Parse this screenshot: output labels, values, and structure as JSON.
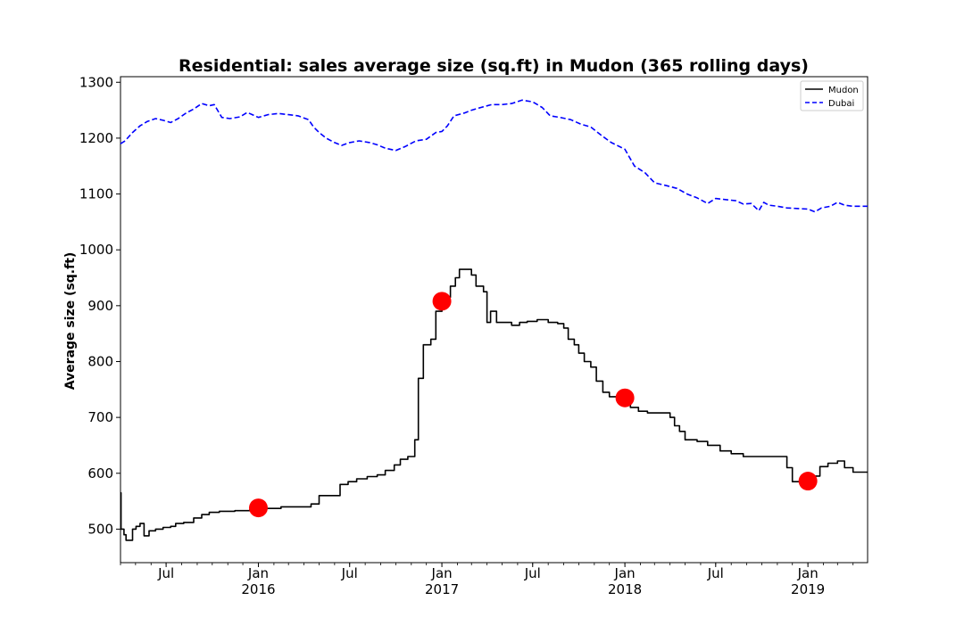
{
  "chart_data": {
    "type": "line",
    "title": "Residential: sales average size (sq.ft) in Mudon (365 rolling days)",
    "xlabel": "",
    "ylabel": "Average size (sq.ft)",
    "xlim": [
      "2015-04-01",
      "2019-04-30"
    ],
    "ylim": [
      440,
      1310
    ],
    "yticks": [
      500,
      600,
      700,
      800,
      900,
      1000,
      1100,
      1200,
      1300
    ],
    "xticks": [
      {
        "date": "2015-07-01",
        "label": "Jul",
        "sublabel": ""
      },
      {
        "date": "2016-01-01",
        "label": "Jan",
        "sublabel": "2016"
      },
      {
        "date": "2016-07-01",
        "label": "Jul",
        "sublabel": ""
      },
      {
        "date": "2017-01-01",
        "label": "Jan",
        "sublabel": "2017"
      },
      {
        "date": "2017-07-01",
        "label": "Jul",
        "sublabel": ""
      },
      {
        "date": "2018-01-01",
        "label": "Jan",
        "sublabel": "2018"
      },
      {
        "date": "2018-07-01",
        "label": "Jul",
        "sublabel": ""
      },
      {
        "date": "2019-01-01",
        "label": "Jan",
        "sublabel": "2019"
      }
    ],
    "grid": false,
    "legend_position": "top-right",
    "series": [
      {
        "name": "Mudon",
        "color": "#000000",
        "style": "solid",
        "step": true,
        "points": [
          [
            "2015-04-01",
            565
          ],
          [
            "2015-04-02",
            500
          ],
          [
            "2015-04-08",
            490
          ],
          [
            "2015-04-12",
            480
          ],
          [
            "2015-04-25",
            500
          ],
          [
            "2015-05-02",
            505
          ],
          [
            "2015-05-10",
            510
          ],
          [
            "2015-05-18",
            488
          ],
          [
            "2015-05-28",
            497
          ],
          [
            "2015-06-10",
            500
          ],
          [
            "2015-06-25",
            503
          ],
          [
            "2015-07-10",
            505
          ],
          [
            "2015-07-20",
            510
          ],
          [
            "2015-08-05",
            512
          ],
          [
            "2015-08-25",
            520
          ],
          [
            "2015-09-10",
            526
          ],
          [
            "2015-09-25",
            530
          ],
          [
            "2015-10-15",
            532
          ],
          [
            "2015-11-15",
            533
          ],
          [
            "2015-12-15",
            535
          ],
          [
            "2016-01-01",
            537
          ],
          [
            "2016-02-15",
            540
          ],
          [
            "2016-04-15",
            545
          ],
          [
            "2016-05-01",
            560
          ],
          [
            "2016-06-05",
            560
          ],
          [
            "2016-06-12",
            580
          ],
          [
            "2016-06-28",
            585
          ],
          [
            "2016-07-15",
            590
          ],
          [
            "2016-08-05",
            594
          ],
          [
            "2016-08-25",
            597
          ],
          [
            "2016-09-10",
            605
          ],
          [
            "2016-09-28",
            615
          ],
          [
            "2016-10-10",
            625
          ],
          [
            "2016-10-25",
            630
          ],
          [
            "2016-11-08",
            660
          ],
          [
            "2016-11-15",
            770
          ],
          [
            "2016-11-25",
            830
          ],
          [
            "2016-12-10",
            840
          ],
          [
            "2016-12-20",
            890
          ],
          [
            "2017-01-01",
            905
          ],
          [
            "2017-01-10",
            915
          ],
          [
            "2017-01-18",
            935
          ],
          [
            "2017-01-28",
            950
          ],
          [
            "2017-02-05",
            965
          ],
          [
            "2017-02-20",
            965
          ],
          [
            "2017-03-01",
            955
          ],
          [
            "2017-03-10",
            935
          ],
          [
            "2017-03-25",
            925
          ],
          [
            "2017-04-01",
            870
          ],
          [
            "2017-04-08",
            890
          ],
          [
            "2017-04-20",
            870
          ],
          [
            "2017-05-20",
            865
          ],
          [
            "2017-06-05",
            870
          ],
          [
            "2017-06-20",
            872
          ],
          [
            "2017-07-10",
            875
          ],
          [
            "2017-08-01",
            870
          ],
          [
            "2017-08-20",
            868
          ],
          [
            "2017-09-01",
            860
          ],
          [
            "2017-09-10",
            840
          ],
          [
            "2017-09-22",
            830
          ],
          [
            "2017-10-01",
            815
          ],
          [
            "2017-10-12",
            800
          ],
          [
            "2017-10-25",
            790
          ],
          [
            "2017-11-05",
            765
          ],
          [
            "2017-11-18",
            745
          ],
          [
            "2017-12-01",
            737
          ],
          [
            "2018-01-01",
            733
          ],
          [
            "2018-01-12",
            718
          ],
          [
            "2018-01-28",
            711
          ],
          [
            "2018-02-15",
            708
          ],
          [
            "2018-03-15",
            708
          ],
          [
            "2018-04-01",
            700
          ],
          [
            "2018-04-10",
            685
          ],
          [
            "2018-04-20",
            675
          ],
          [
            "2018-05-01",
            660
          ],
          [
            "2018-05-25",
            657
          ],
          [
            "2018-06-15",
            650
          ],
          [
            "2018-07-10",
            640
          ],
          [
            "2018-08-01",
            635
          ],
          [
            "2018-08-25",
            630
          ],
          [
            "2018-09-20",
            630
          ],
          [
            "2018-10-15",
            630
          ],
          [
            "2018-11-05",
            630
          ],
          [
            "2018-11-20",
            610
          ],
          [
            "2018-12-01",
            585
          ],
          [
            "2018-12-20",
            590
          ],
          [
            "2019-01-01",
            585
          ],
          [
            "2019-01-15",
            595
          ],
          [
            "2019-01-25",
            612
          ],
          [
            "2019-02-10",
            618
          ],
          [
            "2019-03-01",
            622
          ],
          [
            "2019-03-15",
            610
          ],
          [
            "2019-04-01",
            602
          ],
          [
            "2019-04-30",
            602
          ]
        ]
      },
      {
        "name": "Dubai",
        "color": "#0000ff",
        "style": "dashed",
        "step": false,
        "points": [
          [
            "2015-04-01",
            1190
          ],
          [
            "2015-04-10",
            1195
          ],
          [
            "2015-04-25",
            1210
          ],
          [
            "2015-05-10",
            1222
          ],
          [
            "2015-05-25",
            1230
          ],
          [
            "2015-06-10",
            1235
          ],
          [
            "2015-06-25",
            1232
          ],
          [
            "2015-07-10",
            1228
          ],
          [
            "2015-07-25",
            1235
          ],
          [
            "2015-08-10",
            1245
          ],
          [
            "2015-08-25",
            1252
          ],
          [
            "2015-09-10",
            1262
          ],
          [
            "2015-09-25",
            1258
          ],
          [
            "2015-10-05",
            1260
          ],
          [
            "2015-10-20",
            1237
          ],
          [
            "2015-11-05",
            1235
          ],
          [
            "2015-11-25",
            1238
          ],
          [
            "2015-12-10",
            1246
          ],
          [
            "2016-01-01",
            1237
          ],
          [
            "2016-01-20",
            1242
          ],
          [
            "2016-02-10",
            1244
          ],
          [
            "2016-03-01",
            1242
          ],
          [
            "2016-03-20",
            1240
          ],
          [
            "2016-04-10",
            1233
          ],
          [
            "2016-04-20",
            1220
          ],
          [
            "2016-05-01",
            1210
          ],
          [
            "2016-05-15",
            1200
          ],
          [
            "2016-06-01",
            1192
          ],
          [
            "2016-06-15",
            1187
          ],
          [
            "2016-07-01",
            1192
          ],
          [
            "2016-07-20",
            1195
          ],
          [
            "2016-08-10",
            1192
          ],
          [
            "2016-08-25",
            1188
          ],
          [
            "2016-09-10",
            1182
          ],
          [
            "2016-10-01",
            1178
          ],
          [
            "2016-10-20",
            1185
          ],
          [
            "2016-11-10",
            1195
          ],
          [
            "2016-12-01",
            1198
          ],
          [
            "2016-12-20",
            1210
          ],
          [
            "2017-01-01",
            1212
          ],
          [
            "2017-01-12",
            1222
          ],
          [
            "2017-01-25",
            1240
          ],
          [
            "2017-02-15",
            1245
          ],
          [
            "2017-03-01",
            1250
          ],
          [
            "2017-03-20",
            1255
          ],
          [
            "2017-04-10",
            1260
          ],
          [
            "2017-05-01",
            1260
          ],
          [
            "2017-05-20",
            1262
          ],
          [
            "2017-06-10",
            1268
          ],
          [
            "2017-07-01",
            1265
          ],
          [
            "2017-07-20",
            1255
          ],
          [
            "2017-08-05",
            1240
          ],
          [
            "2017-08-25",
            1237
          ],
          [
            "2017-09-15",
            1233
          ],
          [
            "2017-10-05",
            1225
          ],
          [
            "2017-10-25",
            1220
          ],
          [
            "2017-11-15",
            1205
          ],
          [
            "2017-12-05",
            1192
          ],
          [
            "2018-01-01",
            1180
          ],
          [
            "2018-01-20",
            1150
          ],
          [
            "2018-02-10",
            1138
          ],
          [
            "2018-03-01",
            1120
          ],
          [
            "2018-03-25",
            1115
          ],
          [
            "2018-04-15",
            1110
          ],
          [
            "2018-05-05",
            1100
          ],
          [
            "2018-05-25",
            1093
          ],
          [
            "2018-06-15",
            1083
          ],
          [
            "2018-07-01",
            1092
          ],
          [
            "2018-07-20",
            1090
          ],
          [
            "2018-08-10",
            1088
          ],
          [
            "2018-08-25",
            1082
          ],
          [
            "2018-09-10",
            1083
          ],
          [
            "2018-09-25",
            1070
          ],
          [
            "2018-10-05",
            1085
          ],
          [
            "2018-10-15",
            1080
          ],
          [
            "2018-11-01",
            1078
          ],
          [
            "2018-11-20",
            1075
          ],
          [
            "2018-12-10",
            1074
          ],
          [
            "2019-01-01",
            1073
          ],
          [
            "2019-01-15",
            1068
          ],
          [
            "2019-01-28",
            1075
          ],
          [
            "2019-02-15",
            1078
          ],
          [
            "2019-03-01",
            1085
          ],
          [
            "2019-03-15",
            1080
          ],
          [
            "2019-04-01",
            1078
          ],
          [
            "2019-04-30",
            1078
          ]
        ]
      }
    ],
    "markers": {
      "color": "#ff0000",
      "points": [
        [
          "2016-01-01",
          538
        ],
        [
          "2017-01-01",
          908
        ],
        [
          "2018-01-01",
          735
        ],
        [
          "2019-01-01",
          586
        ]
      ]
    }
  }
}
